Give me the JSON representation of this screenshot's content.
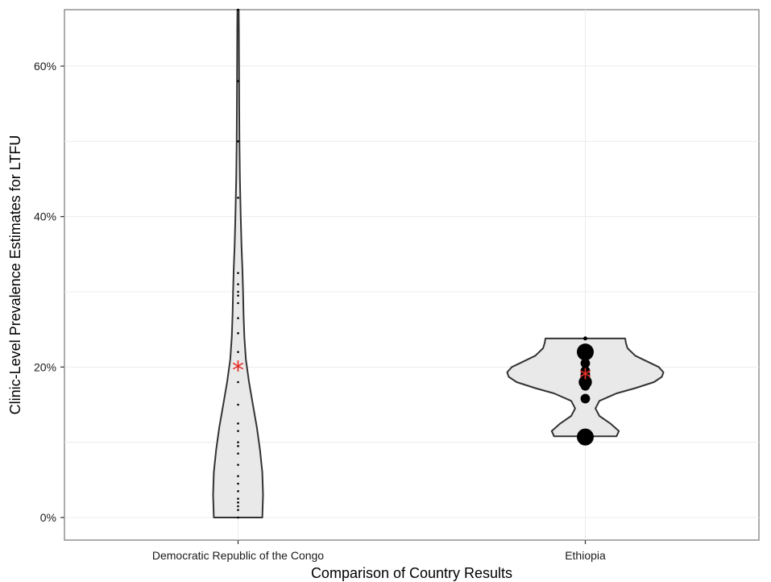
{
  "chart_data": {
    "type": "violin",
    "xlabel": "Comparison of Country Results",
    "ylabel": "Clinic-Level Prevalence Estimates for LTFU",
    "ylim": [
      -0.03,
      0.675
    ],
    "yticks": [
      0,
      0.2,
      0.4,
      0.6
    ],
    "ytick_labels": [
      "0%",
      "20%",
      "40%",
      "60%"
    ],
    "grid": true,
    "categories": [
      "Democratic Republic of the Congo",
      "Ethiopia"
    ],
    "mean_marker": "*",
    "mean_color": "#e8302a",
    "violin_fill": "#e9e9e9",
    "series": [
      {
        "category": "Democratic Republic of the Congo",
        "mean": 0.203,
        "points": [
          {
            "y": 0.675,
            "size": 1
          },
          {
            "y": 0.58,
            "size": 1
          },
          {
            "y": 0.5,
            "size": 1
          },
          {
            "y": 0.425,
            "size": 1
          },
          {
            "y": 0.325,
            "size": 1
          },
          {
            "y": 0.31,
            "size": 1
          },
          {
            "y": 0.3,
            "size": 1
          },
          {
            "y": 0.295,
            "size": 1
          },
          {
            "y": 0.285,
            "size": 1
          },
          {
            "y": 0.265,
            "size": 1
          },
          {
            "y": 0.245,
            "size": 1
          },
          {
            "y": 0.22,
            "size": 1
          },
          {
            "y": 0.2,
            "size": 1
          },
          {
            "y": 0.18,
            "size": 1
          },
          {
            "y": 0.15,
            "size": 1
          },
          {
            "y": 0.125,
            "size": 1
          },
          {
            "y": 0.115,
            "size": 1
          },
          {
            "y": 0.1,
            "size": 1
          },
          {
            "y": 0.095,
            "size": 1
          },
          {
            "y": 0.085,
            "size": 1
          },
          {
            "y": 0.07,
            "size": 1
          },
          {
            "y": 0.055,
            "size": 1
          },
          {
            "y": 0.045,
            "size": 1
          },
          {
            "y": 0.035,
            "size": 1
          },
          {
            "y": 0.025,
            "size": 1
          },
          {
            "y": 0.02,
            "size": 1
          },
          {
            "y": 0.015,
            "size": 1
          },
          {
            "y": 0.01,
            "size": 1
          },
          {
            "y": 0.0,
            "size": 1
          }
        ],
        "density_profile": [
          [
            0.0,
            0.155
          ],
          [
            0.03,
            0.16
          ],
          [
            0.06,
            0.155
          ],
          [
            0.09,
            0.14
          ],
          [
            0.12,
            0.12
          ],
          [
            0.15,
            0.095
          ],
          [
            0.18,
            0.07
          ],
          [
            0.21,
            0.05
          ],
          [
            0.24,
            0.04
          ],
          [
            0.27,
            0.035
          ],
          [
            0.3,
            0.032
          ],
          [
            0.33,
            0.028
          ],
          [
            0.36,
            0.022
          ],
          [
            0.4,
            0.017
          ],
          [
            0.45,
            0.012
          ],
          [
            0.5,
            0.009
          ],
          [
            0.55,
            0.007
          ],
          [
            0.6,
            0.006
          ],
          [
            0.65,
            0.005
          ],
          [
            0.675,
            0.004
          ]
        ]
      },
      {
        "category": "Ethiopia",
        "mean": 0.193,
        "points": [
          {
            "y": 0.238,
            "size": 1.5
          },
          {
            "y": 0.22,
            "size": 5
          },
          {
            "y": 0.205,
            "size": 3
          },
          {
            "y": 0.195,
            "size": 3
          },
          {
            "y": 0.19,
            "size": 3
          },
          {
            "y": 0.185,
            "size": 3
          },
          {
            "y": 0.18,
            "size": 4
          },
          {
            "y": 0.175,
            "size": 3
          },
          {
            "y": 0.158,
            "size": 3
          },
          {
            "y": 0.107,
            "size": 5
          }
        ],
        "density_profile": [
          [
            0.108,
            0.2
          ],
          [
            0.115,
            0.215
          ],
          [
            0.125,
            0.16
          ],
          [
            0.135,
            0.09
          ],
          [
            0.145,
            0.065
          ],
          [
            0.155,
            0.09
          ],
          [
            0.165,
            0.2
          ],
          [
            0.172,
            0.32
          ],
          [
            0.18,
            0.44
          ],
          [
            0.187,
            0.49
          ],
          [
            0.193,
            0.5
          ],
          [
            0.2,
            0.47
          ],
          [
            0.207,
            0.4
          ],
          [
            0.215,
            0.32
          ],
          [
            0.225,
            0.27
          ],
          [
            0.232,
            0.26
          ],
          [
            0.238,
            0.255
          ]
        ]
      }
    ]
  }
}
